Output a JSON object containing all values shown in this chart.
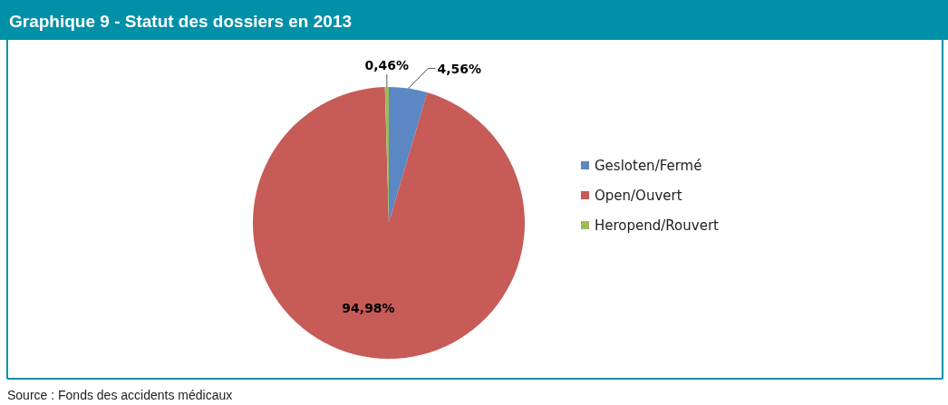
{
  "chart_data": {
    "type": "pie",
    "title": "Graphique 9 - Statut des dossiers en 2013",
    "categories": [
      "Gesloten/Fermé",
      "Open/Ouvert",
      "Heropend/Rouvert"
    ],
    "values": [
      4.56,
      94.98,
      0.46
    ],
    "colors": [
      "#5b87c5",
      "#c65b57",
      "#9bbb59"
    ],
    "value_labels": [
      "4,56%",
      "94,98%",
      "0,46%"
    ],
    "legend": "right",
    "annotations": [
      "Source : Fonds des accidents médicaux"
    ]
  }
}
